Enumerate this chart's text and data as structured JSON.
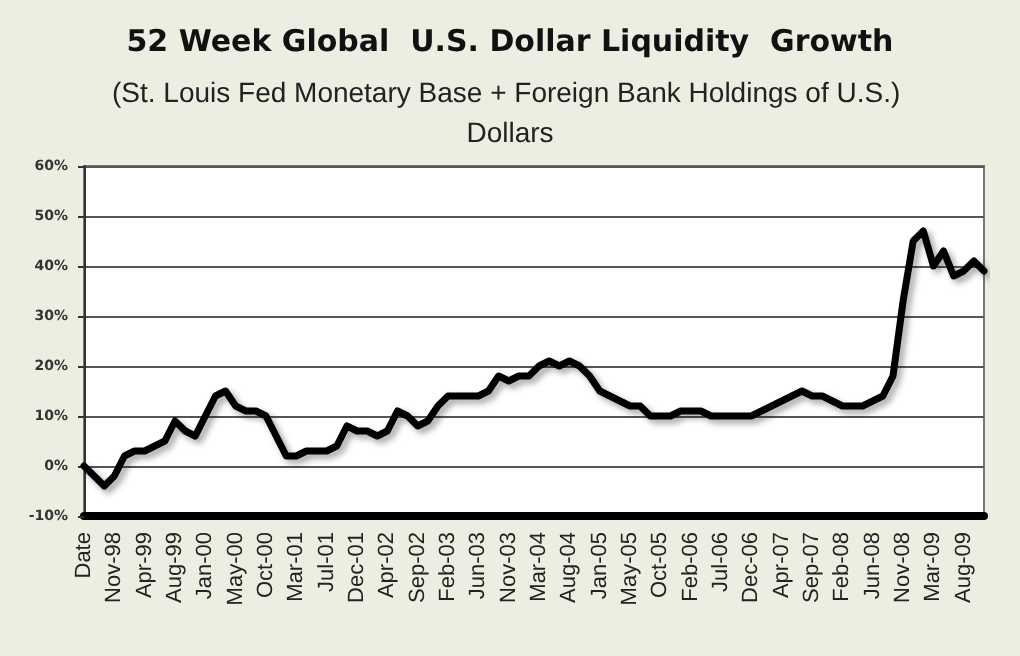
{
  "chart_data": {
    "type": "line",
    "title": "52 Week Global  U.S. Dollar Liquidity  Growth",
    "subtitle": "(St. Louis Fed Monetary Base + Foreign Bank Holdings of U.S.) Dollars",
    "categories": [
      "Date",
      null,
      null,
      "Nov-98",
      null,
      null,
      "Apr-99",
      null,
      null,
      "Aug-99",
      null,
      null,
      "Jan-00",
      null,
      null,
      "May-00",
      null,
      null,
      "Oct-00",
      null,
      null,
      "Mar-01",
      null,
      null,
      "Jul-01",
      null,
      null,
      "Dec-01",
      null,
      null,
      "Apr-02",
      null,
      null,
      "Sep-02",
      null,
      null,
      "Feb-03",
      null,
      null,
      "Jun-03",
      null,
      null,
      "Nov-03",
      null,
      null,
      "Mar-04",
      null,
      null,
      "Aug-04",
      null,
      null,
      "Jan-05",
      null,
      null,
      "May-05",
      null,
      null,
      "Oct-05",
      null,
      null,
      "Feb-06",
      null,
      null,
      "Jul-06",
      null,
      null,
      "Dec-06",
      null,
      null,
      "Apr-07",
      null,
      null,
      "Sep-07",
      null,
      null,
      "Feb-08",
      null,
      null,
      "Jun-08",
      null,
      null,
      "Nov-08",
      null,
      null,
      "Mar-09",
      null,
      null,
      "Aug-09",
      null,
      null
    ],
    "series": [
      {
        "color": "#000000",
        "values": [
          0,
          -2,
          -4,
          -2,
          2,
          3,
          3,
          4,
          5,
          9,
          7,
          6,
          10,
          14,
          15,
          12,
          11,
          11,
          10,
          6,
          2,
          2,
          3,
          3,
          3,
          4,
          8,
          7,
          7,
          6,
          7,
          11,
          10,
          8,
          9,
          12,
          14,
          14,
          14,
          14,
          15,
          18,
          17,
          18,
          18,
          20,
          21,
          20,
          21,
          20,
          18,
          15,
          14,
          13,
          12,
          12,
          10,
          10,
          10,
          11,
          11,
          11,
          10,
          10,
          10,
          10,
          10,
          11,
          12,
          13,
          14,
          15,
          14,
          14,
          13,
          12,
          12,
          12,
          13,
          14,
          18,
          33,
          45,
          47,
          40,
          43,
          38,
          39,
          41,
          39
        ]
      }
    ],
    "ylim": [
      -10,
      60
    ],
    "yticks": [
      {
        "value": -10,
        "label": "-10%"
      },
      {
        "value": 0,
        "label": "0%"
      },
      {
        "value": 10,
        "label": "10%"
      },
      {
        "value": 20,
        "label": "20%"
      },
      {
        "value": 30,
        "label": "30%"
      },
      {
        "value": 40,
        "label": "40%"
      },
      {
        "value": 50,
        "label": "50%"
      },
      {
        "value": 60,
        "label": "60%"
      }
    ],
    "grid": "y",
    "marker": "none",
    "line_style": "solid"
  }
}
